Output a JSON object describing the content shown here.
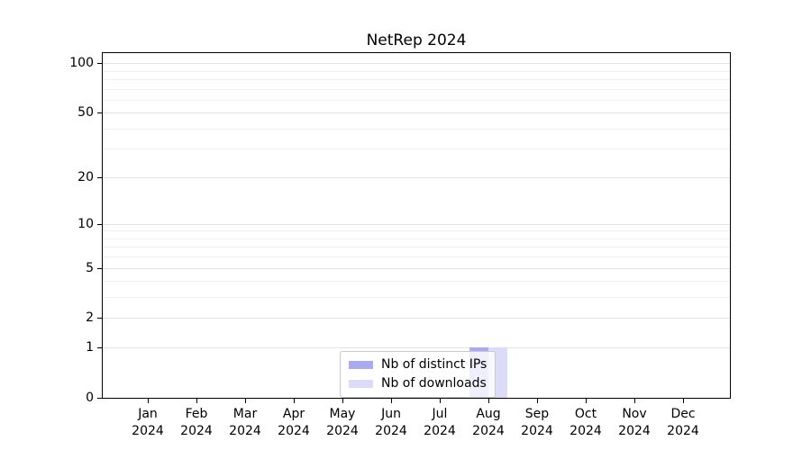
{
  "chart_data": {
    "type": "bar",
    "title": "NetRep 2024",
    "categories": [
      "Jan 2024",
      "Feb 2024",
      "Mar 2024",
      "Apr 2024",
      "May 2024",
      "Jun 2024",
      "Jul 2024",
      "Aug 2024",
      "Sep 2024",
      "Oct 2024",
      "Nov 2024",
      "Dec 2024"
    ],
    "series": [
      {
        "name": "Nb of distinct IPs",
        "color": "#aaaaf0",
        "values": [
          0,
          0,
          0,
          0,
          0,
          0,
          0,
          1,
          0,
          0,
          0,
          0
        ]
      },
      {
        "name": "Nb of downloads",
        "color": "#dcdcf8",
        "values": [
          0,
          0,
          0,
          0,
          0,
          0,
          0,
          1,
          0,
          0,
          0,
          0
        ]
      }
    ],
    "y_ticks": [
      0,
      1,
      2,
      5,
      10,
      20,
      50,
      100
    ],
    "y_minor_gridlines": [
      3,
      4,
      6,
      7,
      8,
      9,
      30,
      40,
      60,
      70,
      80,
      90
    ],
    "y_scale": "log1p",
    "ylim": [
      0,
      115
    ],
    "xlabel": "",
    "ylabel": "",
    "legend_position": "lower center",
    "grid": "horizontal",
    "colors": {
      "major_grid": "#e2e2e2",
      "minor_grid": "#f0f0f0",
      "axis": "#000000",
      "background": "#ffffff"
    }
  }
}
